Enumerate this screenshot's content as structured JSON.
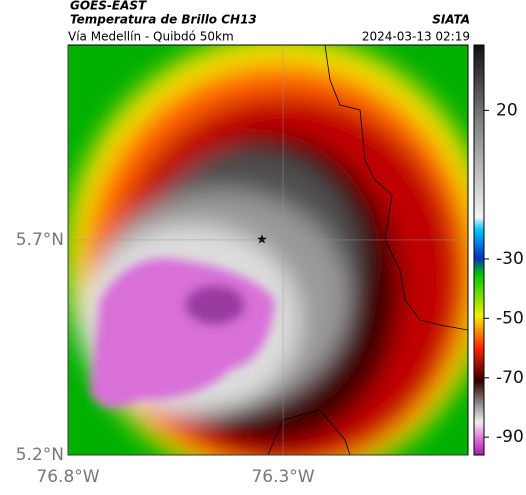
{
  "header": {
    "satellite": "GOES-EAST",
    "product": "Temperatura de Brillo CH13",
    "source": "SIATA",
    "region": "Vía Medellín - Quibdó 50km",
    "timestamp": "2024-03-13 02:19"
  },
  "map": {
    "latlim": [
      5.2,
      6.153
    ],
    "lonlim": [
      -76.8,
      -75.87
    ],
    "latticks": [
      {
        "value": 5.2,
        "label": "5.2°N"
      },
      {
        "value": 5.7,
        "label": "5.7°N"
      }
    ],
    "lonticks": [
      {
        "value": -76.8,
        "label": "76.8°W"
      },
      {
        "value": -76.3,
        "label": "76.3°W"
      }
    ]
  },
  "colorbar": {
    "lim": [
      -96,
      42
    ],
    "ticks": [
      20,
      -30,
      -50,
      -70,
      -90
    ]
  }
}
